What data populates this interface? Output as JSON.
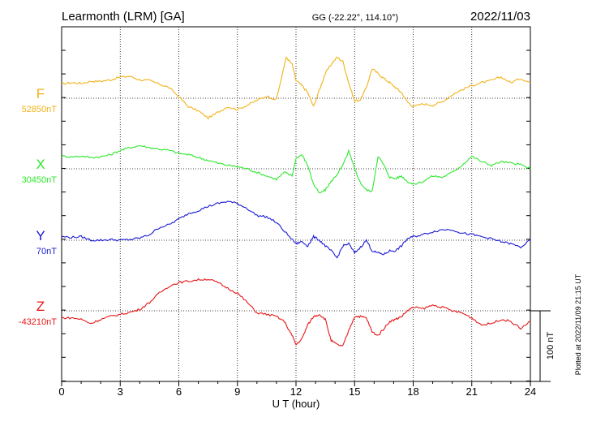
{
  "header": {
    "station": "Learmonth (LRM)  [GA]",
    "coords": "GG (-22.22°, 114.10°)",
    "date": "2022/11/03"
  },
  "plotted_note": "Plotted at 2022/11/09 21:15 UT",
  "chart_data": {
    "type": "line",
    "xlabel": "U T (hour)",
    "xlim": [
      0,
      24
    ],
    "x_ticks": [
      "0",
      "3",
      "6",
      "9",
      "12",
      "15",
      "18",
      "21",
      "24"
    ],
    "scale_bar": {
      "label": "100 nT",
      "value_nT": 100
    },
    "series": [
      {
        "name": "F",
        "baseline": "52850nT",
        "color": "#f2b21a",
        "x": [
          0,
          0.5,
          1,
          1.5,
          2,
          2.5,
          3,
          3.5,
          4,
          4.5,
          5,
          5.5,
          6,
          6.5,
          7,
          7.5,
          8,
          8.5,
          9,
          9.5,
          10,
          10.5,
          11,
          11.5,
          11.8,
          12,
          12.3,
          12.6,
          12.9,
          13.2,
          13.5,
          13.8,
          14.1,
          14.4,
          14.7,
          15,
          15.3,
          15.6,
          15.9,
          16.2,
          16.5,
          16.8,
          17.1,
          17.4,
          17.7,
          18,
          18.5,
          19,
          19.5,
          20,
          20.5,
          21,
          21.5,
          22,
          22.5,
          23,
          23.5,
          24
        ],
        "values": [
          20,
          22,
          21,
          24,
          24,
          26,
          30,
          31,
          26,
          25,
          20,
          15,
          2,
          -12,
          -18,
          -28,
          -20,
          -12,
          -16,
          -10,
          -3,
          3,
          -2,
          58,
          48,
          25,
          18,
          8,
          -12,
          12,
          35,
          48,
          58,
          52,
          22,
          -4,
          -2,
          15,
          42,
          35,
          28,
          22,
          15,
          8,
          -5,
          -12,
          -8,
          -10,
          -5,
          5,
          12,
          18,
          22,
          25,
          30,
          22,
          28,
          22
        ]
      },
      {
        "name": "X",
        "baseline": "30450nT",
        "color": "#2ee82e",
        "x": [
          0,
          0.5,
          1,
          1.5,
          2,
          2.5,
          3,
          3.5,
          4,
          4.5,
          5,
          5.5,
          6,
          6.5,
          7,
          7.5,
          8,
          8.5,
          9,
          9.5,
          10,
          10.5,
          11,
          11.4,
          11.8,
          12,
          12.3,
          12.6,
          12.9,
          13.2,
          13.5,
          13.8,
          14.1,
          14.4,
          14.7,
          15,
          15.3,
          15.6,
          15.9,
          16.2,
          16.5,
          16.8,
          17.1,
          17.4,
          17.7,
          18,
          18.5,
          19,
          19.5,
          20,
          20.5,
          21,
          21.5,
          22,
          22.5,
          23,
          23.5,
          24
        ],
        "values": [
          18,
          17,
          18,
          16,
          17,
          20,
          26,
          30,
          33,
          30,
          28,
          26,
          22,
          20,
          16,
          12,
          8,
          5,
          3,
          0,
          -5,
          -10,
          -15,
          -5,
          -10,
          15,
          20,
          5,
          -22,
          -35,
          -30,
          -18,
          -8,
          5,
          25,
          0,
          -20,
          -30,
          -32,
          18,
          5,
          -12,
          -14,
          -10,
          -18,
          -22,
          -18,
          -10,
          -12,
          -5,
          5,
          18,
          10,
          5,
          10,
          8,
          6,
          0
        ]
      },
      {
        "name": "Y",
        "baseline": "70nT",
        "color": "#1a1ad6",
        "x": [
          0,
          0.5,
          1,
          1.5,
          2,
          2.5,
          3,
          3.5,
          4,
          4.5,
          5,
          5.5,
          6,
          6.5,
          7,
          7.5,
          8,
          8.5,
          9,
          9.5,
          10,
          10.5,
          11,
          11.5,
          12,
          12.3,
          12.6,
          12.9,
          13.2,
          13.5,
          13.8,
          14.1,
          14.4,
          14.7,
          15,
          15.3,
          15.6,
          15.9,
          16.2,
          16.5,
          16.8,
          17.1,
          17.4,
          17.7,
          18,
          18.5,
          19,
          19.5,
          20,
          20.5,
          21,
          21.5,
          22,
          22.5,
          23,
          23.5,
          24
        ],
        "values": [
          5,
          4,
          5,
          0,
          0,
          1,
          0,
          1,
          3,
          8,
          18,
          22,
          30,
          38,
          42,
          48,
          52,
          55,
          52,
          45,
          35,
          33,
          25,
          10,
          -5,
          -2,
          -8,
          5,
          0,
          -8,
          -15,
          -25,
          -8,
          -5,
          -18,
          -10,
          0,
          -15,
          -18,
          -20,
          -15,
          -15,
          -8,
          2,
          5,
          8,
          12,
          15,
          15,
          10,
          8,
          5,
          2,
          -2,
          -5,
          -10,
          0
        ]
      },
      {
        "name": "Z",
        "baseline": "-43210nT",
        "color": "#e61717",
        "x": [
          0,
          0.5,
          1,
          1.5,
          2,
          2.5,
          3,
          3.5,
          4,
          4.5,
          5,
          5.5,
          6,
          6.5,
          7,
          7.5,
          8,
          8.5,
          9,
          9.5,
          10,
          10.5,
          11,
          11.4,
          11.8,
          12,
          12.3,
          12.6,
          12.9,
          13.2,
          13.5,
          13.8,
          14.1,
          14.4,
          14.7,
          15,
          15.3,
          15.6,
          15.9,
          16.2,
          16.5,
          16.8,
          17.1,
          17.4,
          17.7,
          18,
          18.5,
          19,
          19.5,
          20,
          20.5,
          21,
          21.5,
          22,
          22.5,
          23,
          23.5,
          24
        ],
        "values": [
          -10,
          -10,
          -12,
          -18,
          -12,
          -8,
          -5,
          -2,
          2,
          12,
          25,
          35,
          40,
          42,
          44,
          45,
          40,
          32,
          25,
          12,
          -3,
          -5,
          -8,
          -15,
          -35,
          -48,
          -40,
          -20,
          -8,
          -5,
          -12,
          -42,
          -48,
          -50,
          -28,
          -8,
          -8,
          -10,
          -30,
          -35,
          -25,
          -15,
          -12,
          -8,
          0,
          5,
          3,
          8,
          5,
          0,
          -3,
          -10,
          -20,
          -18,
          -12,
          -15,
          -25,
          -15
        ]
      }
    ]
  }
}
